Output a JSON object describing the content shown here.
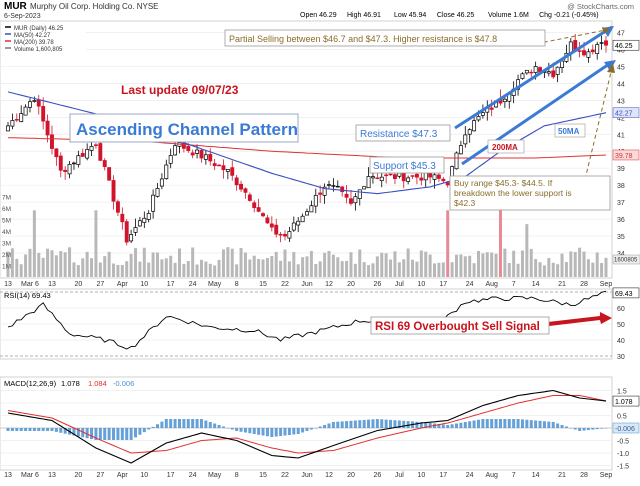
{
  "header": {
    "symbol": "MUR",
    "company": "Murphy Oil Corp. Holding Co.  NYSE",
    "date": "6-Sep-2023",
    "quote": [
      "Open 46.29",
      "High 46.91",
      "Low 45.94",
      "Close 46.25",
      "Volume 1.6M",
      "Chg -0.21 (-0.45%)"
    ],
    "watermark": "@ StockCharts.com"
  },
  "legend": [
    {
      "text": "MUR (Daily) 46.25",
      "color": "#000000"
    },
    {
      "text": "MA(50) 42.27",
      "color": "#3b4fbf"
    },
    {
      "text": "MA(200) 39.78",
      "color": "#e03030"
    },
    {
      "text": "Volume 1,600,805",
      "color": "#777777"
    }
  ],
  "annotations": {
    "last_update": "Last update 09/07/23",
    "pattern": "Ascending Channel Pattern",
    "partial_selling": "Partial Selling between $46.7 and $47.3. Higher resistance is $47.8",
    "resistance": "Resistance $47.3",
    "support": "Support $45.3",
    "ma200_tag": "200MA",
    "ma50_tag": "50MA",
    "buy_range": [
      "Buy range $45.3- $44.5. If",
      "breakdown the lower support is",
      "$42.3"
    ],
    "rsi_signal": "RSI 69 Overbought Sell Signal"
  },
  "rsi_legend": "RSI(14) 69.43",
  "macd_legend": {
    "label": "MACD(12,26,9)",
    "macd": "1.078",
    "signal": "1.084",
    "hist": "-0.006"
  },
  "colors": {
    "up": "#000000",
    "down": "#d0142c",
    "ma50": "#3b4fbf",
    "ma200": "#e03030",
    "hist": "#4a90d0",
    "accent_red": "#c8141e",
    "annot_gold": "#8a6d2a",
    "volume": "#b8b8b8"
  },
  "chart_data": [
    {
      "type": "candlestick",
      "title": "MUR Murphy Oil Corp. Holding Co. NYSE",
      "x_labels": [
        "13",
        "Mar 6",
        "13",
        "20",
        "27",
        "Apr",
        "10",
        "17",
        "24",
        "May",
        "8",
        "15",
        "22",
        "Jun",
        "12",
        "20",
        "26",
        "Jul",
        "10",
        "17",
        "24",
        "Aug",
        "7",
        "14",
        "21",
        "28",
        "Sep"
      ],
      "y_ticks": [
        34,
        35,
        36,
        37,
        38,
        39,
        40,
        41,
        42,
        43,
        44,
        45,
        46,
        47
      ],
      "ylim": [
        33,
        47.5
      ],
      "last_close": 46.25,
      "ma50_last": 42.27,
      "ma200_last": 39.78,
      "price_tags": [
        "46.25",
        "42.27",
        "39.78"
      ],
      "volume_ticks": [
        "1M",
        "2M",
        "3M",
        "4M",
        "5M",
        "6M",
        "7M"
      ],
      "volume_tag": "1600805",
      "close_anchors": [
        [
          0,
          41.5
        ],
        [
          6,
          43.2
        ],
        [
          12,
          38.8
        ],
        [
          20,
          40.5
        ],
        [
          27,
          34.8
        ],
        [
          32,
          36.5
        ],
        [
          38,
          40.5
        ],
        [
          45,
          39.6
        ],
        [
          50,
          38.8
        ],
        [
          55,
          37.3
        ],
        [
          60,
          35.3
        ],
        [
          63,
          35.0
        ],
        [
          67,
          36.2
        ],
        [
          72,
          38.0
        ],
        [
          75,
          37.7
        ],
        [
          78,
          36.8
        ],
        [
          82,
          38.6
        ],
        [
          86,
          38.5
        ],
        [
          93,
          38.5
        ],
        [
          96,
          38.5
        ],
        [
          100,
          38.2
        ],
        [
          104,
          41.2
        ],
        [
          108,
          42.2
        ],
        [
          112,
          43.0
        ],
        [
          116,
          44.2
        ],
        [
          120,
          45.0
        ],
        [
          124,
          44.6
        ],
        [
          128,
          46.3
        ],
        [
          132,
          45.8
        ],
        [
          135,
          46.6
        ],
        [
          136,
          46.25
        ]
      ],
      "ma50_anchors": [
        [
          0,
          43.5
        ],
        [
          20,
          42.2
        ],
        [
          40,
          40.5
        ],
        [
          60,
          38.7
        ],
        [
          72,
          37.8
        ],
        [
          84,
          37.5
        ],
        [
          96,
          37.9
        ],
        [
          104,
          38.5
        ],
        [
          112,
          40.0
        ],
        [
          122,
          41.5
        ],
        [
          136,
          42.27
        ]
      ],
      "ma200_anchors": [
        [
          0,
          40.8
        ],
        [
          30,
          40.6
        ],
        [
          60,
          40.0
        ],
        [
          90,
          39.6
        ],
        [
          120,
          39.6
        ],
        [
          136,
          39.78
        ]
      ]
    },
    {
      "type": "line",
      "name": "RSI(14)",
      "ylim": [
        30,
        70
      ],
      "y_ticks": [
        "70",
        "60",
        "50",
        "40",
        "30"
      ],
      "last": 69.43,
      "last_tag": "69.43",
      "anchors": [
        [
          0,
          48
        ],
        [
          8,
          62
        ],
        [
          14,
          44
        ],
        [
          22,
          40
        ],
        [
          28,
          35
        ],
        [
          36,
          55
        ],
        [
          46,
          48
        ],
        [
          56,
          46
        ],
        [
          62,
          40
        ],
        [
          70,
          45
        ],
        [
          80,
          52
        ],
        [
          90,
          52
        ],
        [
          98,
          50
        ],
        [
          104,
          64
        ],
        [
          112,
          66
        ],
        [
          120,
          66
        ],
        [
          128,
          62
        ],
        [
          136,
          69.43
        ]
      ]
    },
    {
      "type": "line",
      "name": "MACD(12,26,9)",
      "ylim": [
        -1.6,
        1.6
      ],
      "y_ticks": [
        "1.5",
        "1.0",
        "0.5",
        "0.0",
        "-0.5",
        "-1.0",
        "-1.5"
      ],
      "macd_tag": "1.078",
      "hist_tag": "-0.006",
      "macd_anchors": [
        [
          0,
          0.6
        ],
        [
          10,
          0.3
        ],
        [
          20,
          -0.8
        ],
        [
          28,
          -1.4
        ],
        [
          36,
          -0.6
        ],
        [
          44,
          -0.2
        ],
        [
          52,
          -0.5
        ],
        [
          60,
          -1.1
        ],
        [
          66,
          -1.2
        ],
        [
          74,
          -0.7
        ],
        [
          84,
          -0.1
        ],
        [
          94,
          0.2
        ],
        [
          100,
          0.3
        ],
        [
          108,
          0.9
        ],
        [
          116,
          1.3
        ],
        [
          124,
          1.5
        ],
        [
          130,
          1.2
        ],
        [
          136,
          1.078
        ]
      ],
      "signal_anchors": [
        [
          0,
          0.7
        ],
        [
          10,
          0.4
        ],
        [
          20,
          -0.4
        ],
        [
          28,
          -1.0
        ],
        [
          36,
          -0.9
        ],
        [
          44,
          -0.5
        ],
        [
          52,
          -0.4
        ],
        [
          60,
          -0.8
        ],
        [
          66,
          -1.0
        ],
        [
          74,
          -0.9
        ],
        [
          84,
          -0.4
        ],
        [
          94,
          0.0
        ],
        [
          100,
          0.2
        ],
        [
          108,
          0.6
        ],
        [
          116,
          1.0
        ],
        [
          124,
          1.3
        ],
        [
          130,
          1.3
        ],
        [
          136,
          1.084
        ]
      ]
    }
  ]
}
